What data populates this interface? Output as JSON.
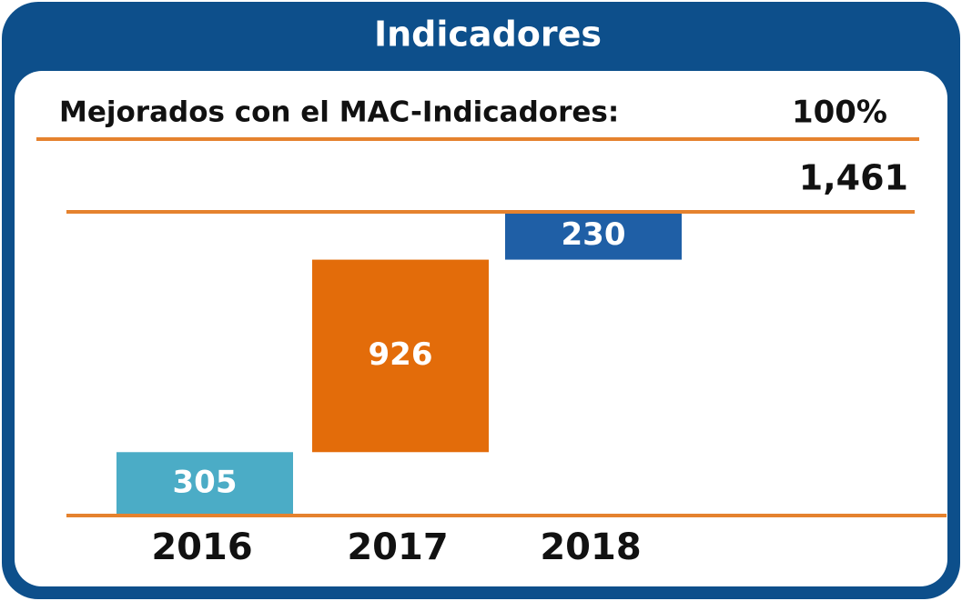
{
  "chart_data": {
    "type": "waterfall",
    "title": "Indicadores",
    "subtitle": "Mejorados con el MAC-Indicadores:",
    "subtitle_value": "100%",
    "categories": [
      "2016",
      "2017",
      "2018"
    ],
    "values": [
      305,
      926,
      230
    ],
    "colors": [
      "#4bacc6",
      "#e36c0a",
      "#1f5fa6"
    ],
    "total": {
      "value": 1461,
      "label": "1,461"
    },
    "line_color": "#e5822e"
  }
}
